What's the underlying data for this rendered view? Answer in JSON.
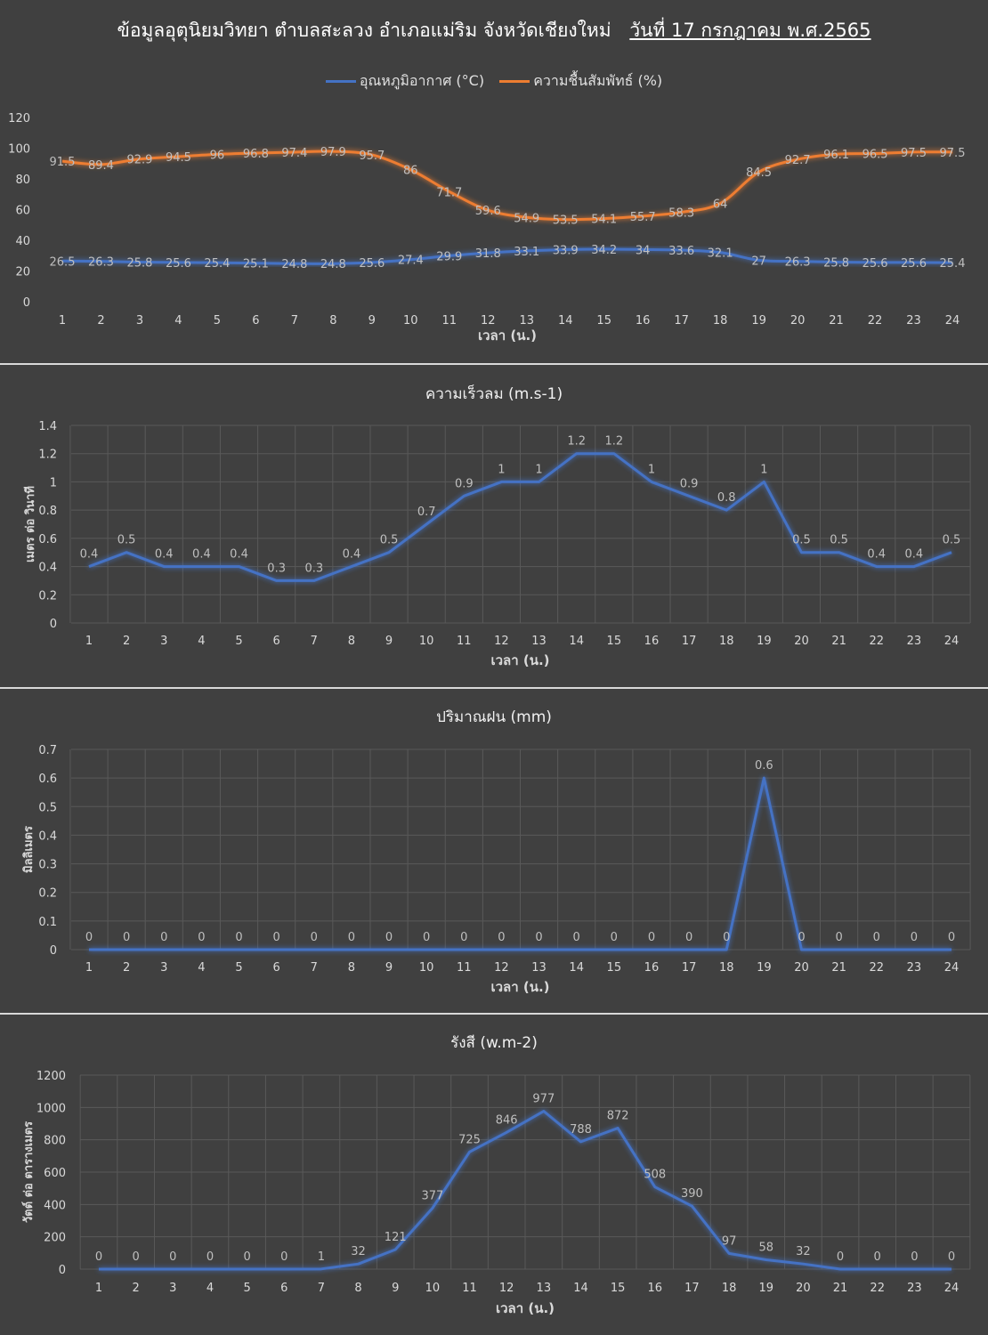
{
  "title": {
    "main": "ข้อมูลอุตุนิยมวิทยา ตำบลสะลวง อำเภอแม่ริม จังหวัดเชียงใหม่",
    "date": "วันที่ 17 กรกฎาคม พ.ศ.2565"
  },
  "colors": {
    "blue": "#4472c4",
    "orange": "#ed7d31",
    "grid": "#595959",
    "text": "#d9d9d9"
  },
  "chart_data": [
    {
      "type": "line",
      "title": "",
      "xlabel": "เวลา (น.)",
      "ylabel": "",
      "ylim": [
        0,
        120
      ],
      "yticks": [
        0,
        20,
        40,
        60,
        80,
        100,
        120
      ],
      "categories": [
        1,
        2,
        3,
        4,
        5,
        6,
        7,
        8,
        9,
        10,
        11,
        12,
        13,
        14,
        15,
        16,
        17,
        18,
        19,
        20,
        21,
        22,
        23,
        24
      ],
      "legend": "top",
      "grid": false,
      "series": [
        {
          "name": "อุณหภูมิอากาศ (°C)",
          "color": "#4472c4",
          "values": [
            26.5,
            26.3,
            25.8,
            25.6,
            25.4,
            25.1,
            24.8,
            24.8,
            25.6,
            27.4,
            29.9,
            31.8,
            33.1,
            33.9,
            34.2,
            34,
            33.6,
            32.1,
            27,
            26.3,
            25.8,
            25.6,
            25.6,
            25.4
          ]
        },
        {
          "name": "ความชื้นสัมพัทธ์ (%)",
          "color": "#ed7d31",
          "values": [
            91.5,
            89.4,
            92.9,
            94.5,
            96,
            96.8,
            97.4,
            97.9,
            95.7,
            86,
            71.7,
            59.6,
            54.9,
            53.5,
            54.1,
            55.7,
            58.3,
            64,
            84.5,
            92.7,
            96.1,
            96.5,
            97.5,
            97.5
          ]
        }
      ]
    },
    {
      "type": "line",
      "title": "ความเร็วลม (m.s-1)",
      "xlabel": "เวลา (น.)",
      "ylabel": "เมตร ต่อ วินาที",
      "ylim": [
        0,
        1.4
      ],
      "yticks": [
        0,
        0.2,
        0.4,
        0.6,
        0.8,
        1,
        1.2,
        1.4
      ],
      "categories": [
        1,
        2,
        3,
        4,
        5,
        6,
        7,
        8,
        9,
        10,
        11,
        12,
        13,
        14,
        15,
        16,
        17,
        18,
        19,
        20,
        21,
        22,
        23,
        24
      ],
      "grid": true,
      "series": [
        {
          "color": "#4472c4",
          "values": [
            0.4,
            0.5,
            0.4,
            0.4,
            0.4,
            0.3,
            0.3,
            0.4,
            0.5,
            0.7,
            0.9,
            1,
            1,
            1.2,
            1.2,
            1,
            0.9,
            0.8,
            1,
            0.5,
            0.5,
            0.4,
            0.4,
            0.5
          ]
        }
      ]
    },
    {
      "type": "line",
      "title": "ปริมาณฝน (mm)",
      "xlabel": "เวลา (น.)",
      "ylabel": "มิลลิเมตร",
      "ylim": [
        0,
        0.7
      ],
      "yticks": [
        0,
        0.1,
        0.2,
        0.3,
        0.4,
        0.5,
        0.6,
        0.7
      ],
      "categories": [
        1,
        2,
        3,
        4,
        5,
        6,
        7,
        8,
        9,
        10,
        11,
        12,
        13,
        14,
        15,
        16,
        17,
        18,
        19,
        20,
        21,
        22,
        23,
        24
      ],
      "grid": true,
      "series": [
        {
          "color": "#4472c4",
          "values": [
            0,
            0,
            0,
            0,
            0,
            0,
            0,
            0,
            0,
            0,
            0,
            0,
            0,
            0,
            0,
            0,
            0,
            0,
            0.6,
            0,
            0,
            0,
            0,
            0
          ]
        }
      ]
    },
    {
      "type": "line",
      "title": "รังสี (w.m-2)",
      "xlabel": "เวลา (น.)",
      "ylabel": "วัตต์ ต่อ ตารางเมตร",
      "ylim": [
        0,
        1200
      ],
      "yticks": [
        0,
        200,
        400,
        600,
        800,
        1000,
        1200
      ],
      "categories": [
        1,
        2,
        3,
        4,
        5,
        6,
        7,
        8,
        9,
        10,
        11,
        12,
        13,
        14,
        15,
        16,
        17,
        18,
        19,
        20,
        21,
        22,
        23,
        24
      ],
      "grid": true,
      "series": [
        {
          "color": "#4472c4",
          "values": [
            0,
            0,
            0,
            0,
            0,
            0,
            1,
            32,
            121,
            377,
            725,
            846,
            977,
            788,
            872,
            508,
            390,
            97,
            58,
            32,
            0,
            0,
            0,
            0
          ]
        }
      ]
    }
  ]
}
